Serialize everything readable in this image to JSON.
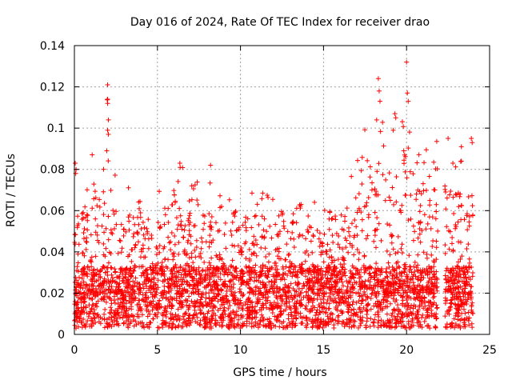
{
  "chart_data": {
    "type": "scatter",
    "title": "Day 016 of 2024, Rate Of TEC Index for receiver drao",
    "xlabel": "GPS time / hours",
    "ylabel": "ROTI / TECUs",
    "xlim": [
      0,
      25
    ],
    "ylim": [
      0,
      0.14
    ],
    "xticks": [
      0,
      5,
      10,
      15,
      20,
      25
    ],
    "xtick_labels": [
      "0",
      "5",
      "10",
      "15",
      "20",
      "25"
    ],
    "yticks": [
      0,
      0.02,
      0.04,
      0.06,
      0.08,
      0.1,
      0.12,
      0.14
    ],
    "ytick_labels": [
      "0",
      "0.02",
      "0.04",
      "0.06",
      "0.08",
      "0.1",
      "0.12",
      "0.14"
    ],
    "grid": true,
    "marker": "+",
    "series_color": "#ff0000",
    "time_range_hours": [
      0,
      24
    ],
    "data_gap_hours": [
      21.9,
      22.3
    ],
    "envelope": [
      {
        "x": 0.0,
        "ymax": 0.083
      },
      {
        "x": 0.5,
        "ymax": 0.068
      },
      {
        "x": 1.0,
        "ymax": 0.086
      },
      {
        "x": 2.0,
        "ymax": 0.121
      },
      {
        "x": 2.7,
        "ymax": 0.075
      },
      {
        "x": 4.5,
        "ymax": 0.064
      },
      {
        "x": 5.4,
        "ymax": 0.075
      },
      {
        "x": 6.3,
        "ymax": 0.083
      },
      {
        "x": 8.2,
        "ymax": 0.082
      },
      {
        "x": 9.5,
        "ymax": 0.072
      },
      {
        "x": 11.3,
        "ymax": 0.075
      },
      {
        "x": 13.0,
        "ymax": 0.063
      },
      {
        "x": 15.0,
        "ymax": 0.069
      },
      {
        "x": 16.3,
        "ymax": 0.073
      },
      {
        "x": 18.3,
        "ymax": 0.124
      },
      {
        "x": 19.3,
        "ymax": 0.107
      },
      {
        "x": 20.0,
        "ymax": 0.132
      },
      {
        "x": 20.6,
        "ymax": 0.094
      },
      {
        "x": 22.5,
        "ymax": 0.095
      },
      {
        "x": 23.3,
        "ymax": 0.091
      },
      {
        "x": 23.9,
        "ymax": 0.095
      }
    ],
    "outliers": [
      [
        2.0,
        0.121
      ],
      [
        2.0,
        0.114
      ],
      [
        2.0,
        0.112
      ],
      [
        2.05,
        0.104
      ],
      [
        2.0,
        0.099
      ],
      [
        2.05,
        0.097
      ],
      [
        1.95,
        0.089
      ],
      [
        18.3,
        0.124
      ],
      [
        18.35,
        0.118
      ],
      [
        18.4,
        0.113
      ],
      [
        18.2,
        0.104
      ],
      [
        19.3,
        0.107
      ],
      [
        19.35,
        0.105
      ],
      [
        19.2,
        0.099
      ],
      [
        20.0,
        0.132
      ],
      [
        20.05,
        0.117
      ],
      [
        20.1,
        0.113
      ],
      [
        0.05,
        0.083
      ],
      [
        0.1,
        0.08
      ],
      [
        6.35,
        0.083
      ],
      [
        8.2,
        0.082
      ],
      [
        22.5,
        0.095
      ],
      [
        23.3,
        0.091
      ],
      [
        23.9,
        0.095
      ],
      [
        23.95,
        0.093
      ],
      [
        23.3,
        0.084
      ]
    ]
  }
}
